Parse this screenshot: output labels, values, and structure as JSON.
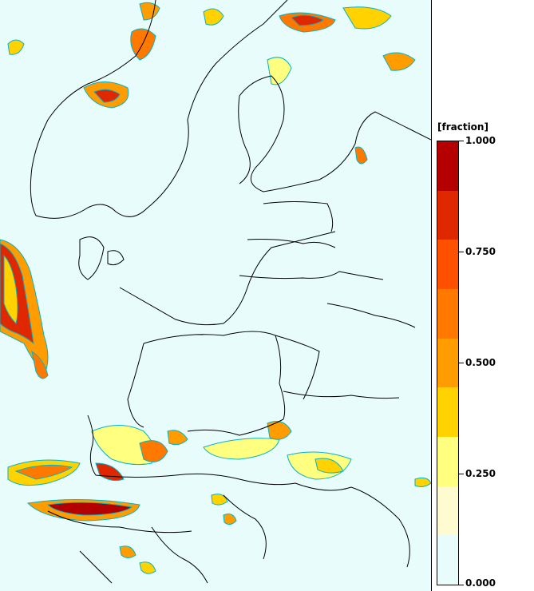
{
  "legend": {
    "title": "[fraction]",
    "labels": [
      "1.000",
      "0.750",
      "0.500",
      "0.250",
      "0.000"
    ],
    "scale_min": 0,
    "scale_max": 1,
    "color_bins": [
      "#e8fcfc",
      "#fffbd0",
      "#ffff80",
      "#ffd200",
      "#ff9c00",
      "#ff7800",
      "#ff5000",
      "#e02800",
      "#b40000"
    ]
  },
  "map": {
    "background_color": "#e8fcfc",
    "boundary_color": "#000000",
    "low_contour_color": "#00b4c8"
  }
}
